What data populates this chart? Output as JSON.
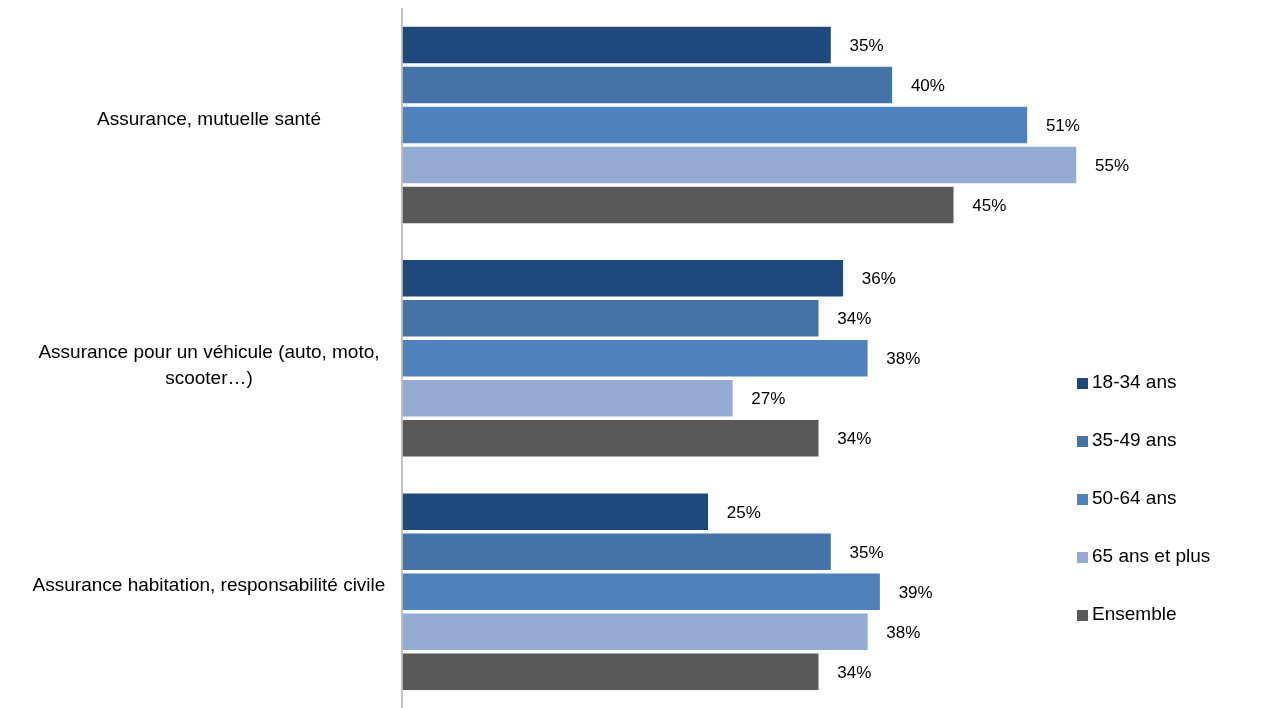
{
  "chart_data": {
    "type": "bar",
    "orientation": "horizontal",
    "categories": [
      "Assurance, mutuelle santé",
      "Assurance pour un véhicule (auto, moto, scooter…)",
      "Assurance habitation, responsabilité civile"
    ],
    "series": [
      {
        "name": "18-34 ans",
        "color": "#1f497d",
        "values": [
          35,
          36,
          25
        ],
        "value_labels": [
          "35%",
          "36%",
          "25%"
        ]
      },
      {
        "name": "35-49 ans",
        "color": "#4572a7",
        "values": [
          40,
          34,
          35
        ],
        "value_labels": [
          "40%",
          "34%",
          "35%"
        ]
      },
      {
        "name": "50-64 ans",
        "color": "#4f81bd",
        "values": [
          51,
          38,
          39
        ],
        "value_labels": [
          "51%",
          "38%",
          "39%"
        ]
      },
      {
        "name": "65 ans et plus",
        "color": "#95abd3",
        "values": [
          55,
          27,
          38
        ],
        "value_labels": [
          "55%",
          "27%",
          "38%"
        ]
      },
      {
        "name": "Ensemble",
        "color": "#595959",
        "values": [
          45,
          34,
          34
        ],
        "value_labels": [
          "45%",
          "34%",
          "34%"
        ]
      }
    ],
    "legend": "right",
    "grid": false
  }
}
